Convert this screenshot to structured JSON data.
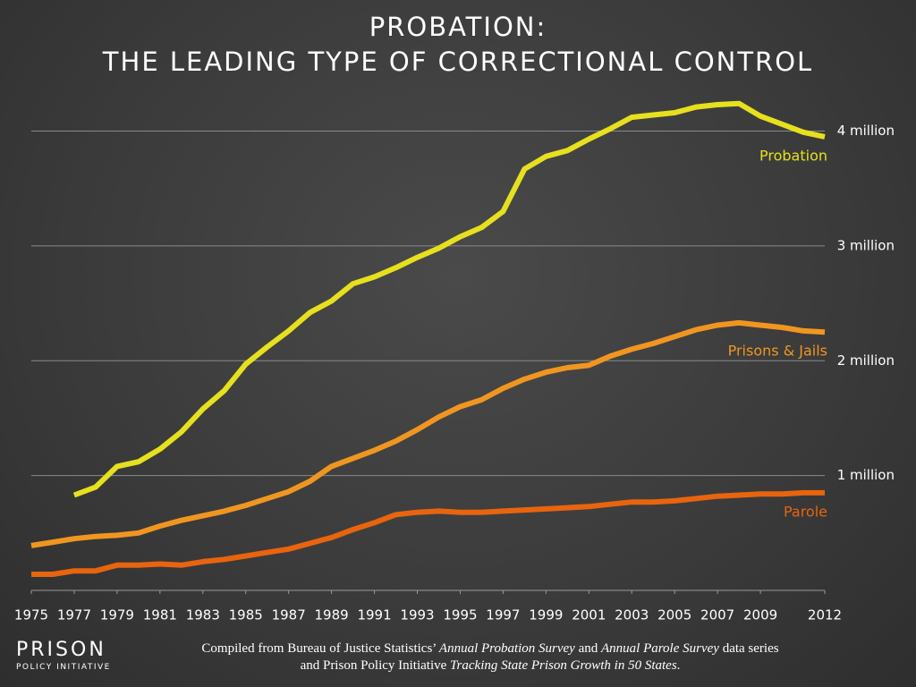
{
  "chart_data": {
    "type": "line",
    "title": "PROBATION:",
    "subtitle": "THE LEADING TYPE OF CORRECTIONAL CONTROL",
    "x": [
      1975,
      1976,
      1977,
      1978,
      1979,
      1980,
      1981,
      1982,
      1983,
      1984,
      1985,
      1986,
      1987,
      1988,
      1989,
      1990,
      1991,
      1992,
      1993,
      1994,
      1995,
      1996,
      1997,
      1998,
      1999,
      2000,
      2001,
      2002,
      2003,
      2004,
      2005,
      2006,
      2007,
      2008,
      2009,
      2010,
      2011,
      2012
    ],
    "xlim": [
      1975,
      2012
    ],
    "xticks": [
      1975,
      1977,
      1979,
      1981,
      1983,
      1985,
      1987,
      1989,
      1991,
      1993,
      1995,
      1997,
      1999,
      2001,
      2003,
      2005,
      2007,
      2009,
      2012
    ],
    "ylim": [
      0,
      4300000
    ],
    "yticks": [
      {
        "value": 1000000,
        "label": "1 million"
      },
      {
        "value": 2000000,
        "label": "2 million"
      },
      {
        "value": 3000000,
        "label": "3 million"
      },
      {
        "value": 4000000,
        "label": "4 million"
      }
    ],
    "grid": true,
    "series": [
      {
        "name": "Probation",
        "color": "#e6e01e",
        "values": [
          null,
          null,
          830000,
          900000,
          1080000,
          1120000,
          1230000,
          1380000,
          1580000,
          1740000,
          1970000,
          2120000,
          2260000,
          2420000,
          2520000,
          2670000,
          2730000,
          2810000,
          2900000,
          2980000,
          3080000,
          3160000,
          3300000,
          3670000,
          3780000,
          3830000,
          3930000,
          4020000,
          4120000,
          4140000,
          4160000,
          4210000,
          4230000,
          4240000,
          4130000,
          4060000,
          3990000,
          3950000
        ]
      },
      {
        "name": "Prisons & Jails",
        "color": "#f09620",
        "values": [
          390000,
          420000,
          450000,
          470000,
          480000,
          500000,
          560000,
          610000,
          650000,
          690000,
          740000,
          800000,
          860000,
          950000,
          1080000,
          1150000,
          1220000,
          1300000,
          1400000,
          1510000,
          1600000,
          1660000,
          1760000,
          1840000,
          1900000,
          1940000,
          1960000,
          2040000,
          2100000,
          2150000,
          2210000,
          2270000,
          2310000,
          2330000,
          2310000,
          2290000,
          2260000,
          2250000
        ]
      },
      {
        "name": "Parole",
        "color": "#e8640e",
        "values": [
          140000,
          140000,
          170000,
          170000,
          220000,
          220000,
          230000,
          220000,
          250000,
          270000,
          300000,
          330000,
          360000,
          410000,
          460000,
          530000,
          590000,
          660000,
          680000,
          690000,
          680000,
          680000,
          690000,
          700000,
          710000,
          720000,
          730000,
          750000,
          770000,
          770000,
          780000,
          800000,
          820000,
          830000,
          840000,
          840000,
          850000,
          850000
        ]
      }
    ],
    "source": [
      "Compiled from Bureau of Justice Statistics’ ",
      "Annual Probation Survey",
      " and ",
      "Annual Parole Survey",
      " data series and Prison Policy Initiative ",
      "Tracking State Prison Growth in 50 States",
      "."
    ]
  },
  "logo": {
    "line1": "PRISON",
    "line2": "POLICY INITIATIVE"
  }
}
